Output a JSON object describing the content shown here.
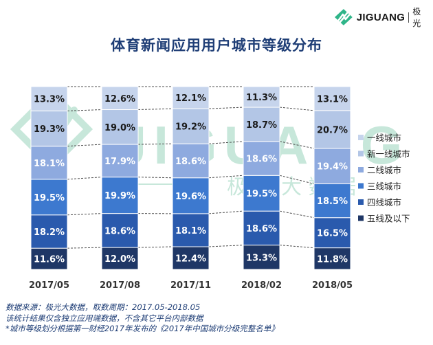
{
  "logo": {
    "brand": "JIGUANG",
    "cn": "极光"
  },
  "watermark": {
    "brand": "JIGUANG",
    "cn": "极 光 大 数 据"
  },
  "colors": {
    "title": "#1f3e76",
    "notes": "#1f3e76",
    "tier1": "#c6d4ec",
    "new_tier1": "#b3c6e6",
    "tier2": "#8eaadf",
    "tier3": "#3d79cf",
    "tier4": "#2a5aad",
    "tier5": "#1f3766",
    "watermark": "#9ad4bd"
  },
  "chart_data": {
    "type": "bar",
    "stacked": "percent",
    "title": "体育新闻应用用户城市等级分布",
    "categories": [
      "2017/05",
      "2017/08",
      "2017/11",
      "2018/02",
      "2018/05"
    ],
    "series": [
      {
        "name": "五线及以下",
        "color": "#1f3766",
        "text": "#ffffff",
        "values": [
          11.6,
          12.0,
          12.4,
          13.3,
          11.8
        ],
        "labels": [
          "11.6%",
          "12.0%",
          "12.4%",
          "13.3%",
          "11.8%"
        ]
      },
      {
        "name": "四线城市",
        "color": "#2a5aad",
        "text": "#ffffff",
        "values": [
          18.2,
          18.6,
          18.1,
          18.6,
          16.5
        ],
        "labels": [
          "18.2%",
          "18.6%",
          "18.1%",
          "18.6%",
          "16.5%"
        ]
      },
      {
        "name": "三线城市",
        "color": "#3d79cf",
        "text": "#ffffff",
        "values": [
          19.5,
          19.9,
          19.6,
          19.5,
          18.5
        ],
        "labels": [
          "19.5%",
          "19.9%",
          "19.6%",
          "19.5%",
          "18.5%"
        ]
      },
      {
        "name": "二线城市",
        "color": "#8eaadf",
        "text": "#ffffff",
        "values": [
          18.1,
          17.9,
          18.6,
          18.6,
          19.4
        ],
        "labels": [
          "18.1%",
          "17.9%",
          "18.6%",
          "18.6%",
          "19.4%"
        ]
      },
      {
        "name": "新一线城市",
        "color": "#b3c6e6",
        "text": "#1a1a1a",
        "values": [
          19.3,
          19.0,
          19.2,
          18.7,
          20.7
        ],
        "labels": [
          "19.3%",
          "19.0%",
          "19.2%",
          "18.7%",
          "20.7%"
        ]
      },
      {
        "name": "一线城市",
        "color": "#c6d4ec",
        "text": "#1a1a1a",
        "values": [
          13.3,
          12.6,
          12.1,
          11.3,
          13.1
        ],
        "labels": [
          "13.3%",
          "12.6%",
          "12.1%",
          "11.3%",
          "13.1%"
        ]
      }
    ],
    "legend": {
      "position": "right",
      "order": [
        "一线城市",
        "新一线城市",
        "二线城市",
        "三线城市",
        "四线城市",
        "五线及以下"
      ]
    },
    "connector_lines": "dashed"
  },
  "notes": [
    "数据来源：极光大数据，取数周期：2017.05-2018.05",
    "该统计结果仅含独立应用端数据，不含其它平台内部数据",
    "*城市等级划分根据第一财经2017年发布的《2017年中国城市分级完整名单》"
  ]
}
